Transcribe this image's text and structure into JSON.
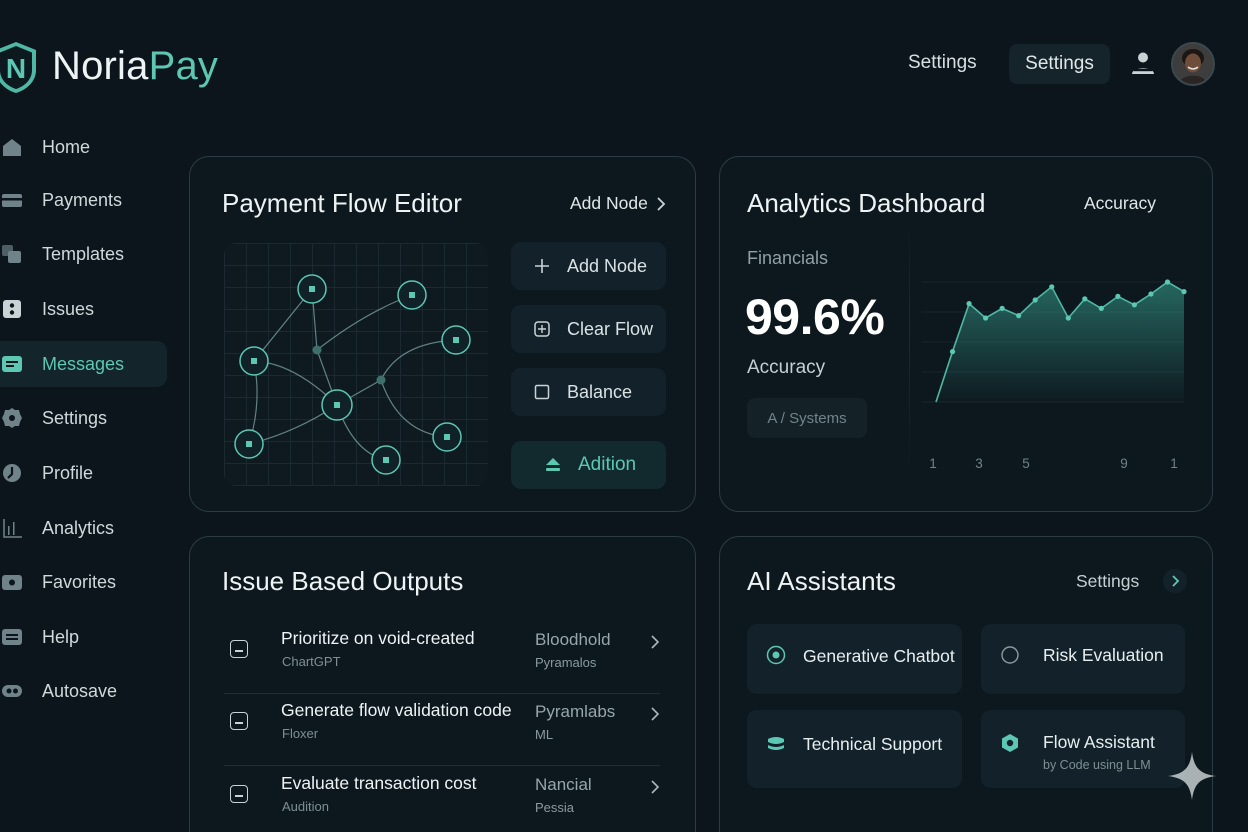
{
  "brand": {
    "name_part1": "Noria",
    "name_part2": "Pay",
    "logo_letter": "N",
    "accent": "#5cc7b3"
  },
  "header": {
    "settings_link": "Settings",
    "settings_button": "Settings",
    "user_icon": "user-icon",
    "avatar": "avatar"
  },
  "sidebar": {
    "items": [
      {
        "label": "Home",
        "icon": "home-icon"
      },
      {
        "label": "Payments",
        "icon": "card-icon"
      },
      {
        "label": "Templates",
        "icon": "templates-icon"
      },
      {
        "label": "Issues",
        "icon": "issues-icon"
      },
      {
        "label": "Messages",
        "icon": "messages-icon",
        "active": true
      },
      {
        "label": "Settings",
        "icon": "gear-icon"
      },
      {
        "label": "Profile",
        "icon": "profile-icon"
      },
      {
        "label": "Analytics",
        "icon": "analytics-icon"
      },
      {
        "label": "Favorites",
        "icon": "favorites-icon"
      },
      {
        "label": "Help",
        "icon": "help-icon"
      },
      {
        "label": "Autosave",
        "icon": "autosave-icon"
      }
    ]
  },
  "flow_editor": {
    "title": "Payment Flow Editor",
    "header_action": "Add Node",
    "buttons": [
      {
        "label": "Add Node",
        "icon": "plus-icon"
      },
      {
        "label": "Clear Flow",
        "icon": "grid-plus-icon"
      },
      {
        "label": "Balance",
        "icon": "square-icon"
      },
      {
        "label": "Adition",
        "icon": "eject-icon"
      }
    ]
  },
  "analytics": {
    "title": "Analytics Dashboard",
    "header_action": "Accuracy",
    "label": "Financials",
    "value": "99.6%",
    "value_caption": "Accuracy",
    "chip": "A / Systems"
  },
  "chart_data": {
    "type": "area",
    "title": "",
    "x_tick_labels": [
      "1",
      "3",
      "5",
      "9",
      "1"
    ],
    "values": [
      0.0,
      0.42,
      0.82,
      0.7,
      0.78,
      0.72,
      0.85,
      0.96,
      0.7,
      0.86,
      0.78,
      0.88,
      0.81,
      0.9,
      1.0,
      0.92
    ],
    "color": "#5cc7b3",
    "grid": true
  },
  "issues": {
    "title": "Issue Based Outputs",
    "rows": [
      {
        "title": "Prioritize on void-created",
        "sub": "ChartGPT",
        "meta": "Bloodhold",
        "meta2": "Pyramalos"
      },
      {
        "title": "Generate flow validation code",
        "sub": "Floxer",
        "meta": "Pyramlabs",
        "meta2": "ML"
      },
      {
        "title": "Evaluate transaction cost",
        "sub": "Audition",
        "meta": "Nancial",
        "meta2": "Pessia"
      }
    ]
  },
  "assistants": {
    "title": "AI Assistants",
    "header_action": "Settings",
    "items": [
      {
        "label": "Generative Chatbot",
        "icon": "target-icon"
      },
      {
        "label": "Risk Evaluation",
        "icon": "circle-icon"
      },
      {
        "label": "Technical Support",
        "icon": "stack-icon"
      },
      {
        "label": "Flow Assistant",
        "icon": "hexagon-icon",
        "sub": "by Code using LLM"
      }
    ]
  }
}
